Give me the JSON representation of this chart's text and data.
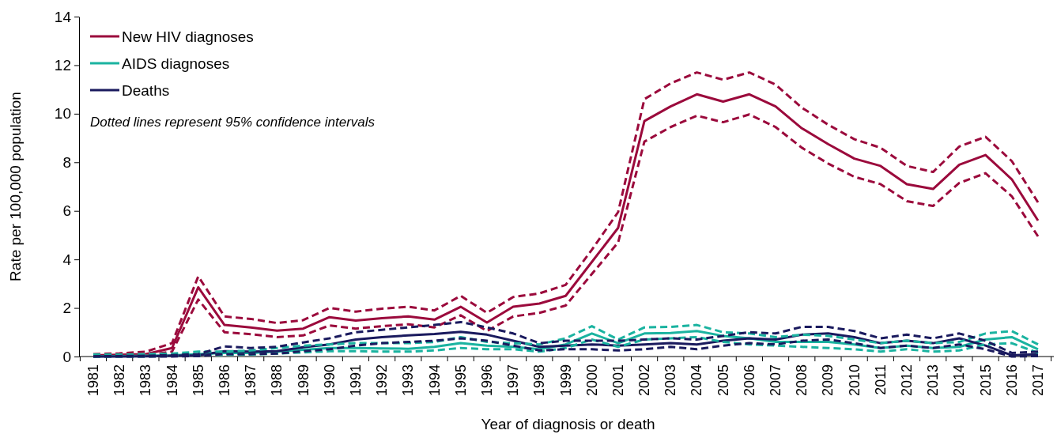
{
  "chart_data": {
    "type": "line",
    "xlabel": "Year of diagnosis or death",
    "ylabel": "Rate per 100,000 population",
    "annotations": [
      "Dotted lines represent 95% confidence intervals"
    ],
    "categories": [
      "1981",
      "1982",
      "1983",
      "1984",
      "1985",
      "1986",
      "1987",
      "1988",
      "1989",
      "1990",
      "1991",
      "1992",
      "1993",
      "1994",
      "1995",
      "1996",
      "1997",
      "1998",
      "1999",
      "2000",
      "2001",
      "2002",
      "2003",
      "2004",
      "2005",
      "2006",
      "2007",
      "2008",
      "2009",
      "2010",
      "2011",
      "2012",
      "2013",
      "2014",
      "2015",
      "2016",
      "2017"
    ],
    "ylim": [
      0,
      14
    ],
    "yticks": [
      0,
      2,
      4,
      6,
      8,
      10,
      12,
      14
    ],
    "grid": false,
    "legend": "top left",
    "marker": "none",
    "line_style": "solid",
    "series": [
      {
        "name": "New HIV diagnoses",
        "color": "#9b0a3c",
        "values": [
          0.05,
          0.07,
          0.1,
          0.35,
          2.85,
          1.3,
          1.2,
          1.07,
          1.15,
          1.62,
          1.48,
          1.58,
          1.65,
          1.52,
          2.05,
          1.4,
          2.05,
          2.18,
          2.5,
          3.9,
          5.3,
          9.7,
          10.3,
          10.8,
          10.5,
          10.8,
          10.3,
          9.4,
          8.75,
          8.15,
          7.85,
          7.1,
          6.9,
          7.9,
          8.3,
          7.3,
          5.6
        ]
      },
      {
        "name": "AIDS diagnoses",
        "color": "#1ab3a0",
        "values": [
          0.01,
          0.02,
          0.03,
          0.05,
          0.1,
          0.15,
          0.15,
          0.2,
          0.28,
          0.35,
          0.35,
          0.33,
          0.32,
          0.4,
          0.55,
          0.45,
          0.4,
          0.3,
          0.5,
          0.95,
          0.55,
          0.95,
          0.97,
          1.05,
          0.85,
          0.75,
          0.6,
          0.6,
          0.6,
          0.5,
          0.35,
          0.45,
          0.35,
          0.4,
          0.7,
          0.8,
          0.3
        ]
      },
      {
        "name": "Deaths",
        "color": "#1a1a5e",
        "values": [
          0,
          0,
          0.01,
          0.03,
          0.05,
          0.22,
          0.2,
          0.22,
          0.38,
          0.5,
          0.7,
          0.8,
          0.87,
          0.93,
          1.02,
          0.9,
          0.65,
          0.4,
          0.45,
          0.5,
          0.45,
          0.5,
          0.55,
          0.5,
          0.65,
          0.75,
          0.7,
          0.9,
          0.95,
          0.8,
          0.55,
          0.65,
          0.55,
          0.75,
          0.45,
          0.05,
          0.1
        ]
      },
      {
        "color": "#9b0a3c",
        "line_style": "dashed",
        "values": [
          0.1,
          0.13,
          0.2,
          0.55,
          3.3,
          1.65,
          1.55,
          1.38,
          1.5,
          2.0,
          1.85,
          1.97,
          2.05,
          1.9,
          2.5,
          1.8,
          2.45,
          2.6,
          2.95,
          4.4,
          5.95,
          10.6,
          11.25,
          11.7,
          11.4,
          11.7,
          11.2,
          10.25,
          9.55,
          8.95,
          8.6,
          7.85,
          7.6,
          8.65,
          9.05,
          8.05,
          6.35
        ]
      },
      {
        "color": "#9b0a3c",
        "line_style": "dashed",
        "values": [
          0.02,
          0.03,
          0.05,
          0.2,
          2.35,
          1.0,
          0.92,
          0.8,
          0.87,
          1.28,
          1.15,
          1.25,
          1.33,
          1.2,
          1.7,
          1.05,
          1.65,
          1.8,
          2.1,
          3.4,
          4.7,
          8.85,
          9.45,
          9.92,
          9.65,
          9.97,
          9.45,
          8.6,
          7.95,
          7.4,
          7.1,
          6.4,
          6.2,
          7.15,
          7.55,
          6.6,
          4.95
        ]
      },
      {
        "color": "#1ab3a0",
        "line_style": "dashed",
        "values": [
          0.08,
          0.08,
          0.1,
          0.12,
          0.2,
          0.2,
          0.25,
          0.35,
          0.45,
          0.5,
          0.55,
          0.55,
          0.55,
          0.6,
          0.8,
          0.6,
          0.55,
          0.5,
          0.75,
          1.25,
          0.7,
          1.2,
          1.22,
          1.3,
          1.0,
          0.95,
          0.8,
          0.9,
          0.85,
          0.7,
          0.55,
          0.65,
          0.55,
          0.6,
          0.95,
          1.05,
          0.5
        ]
      },
      {
        "color": "#1ab3a0",
        "line_style": "dashed",
        "values": [
          0,
          0,
          0,
          0.02,
          0.05,
          0.07,
          0.08,
          0.12,
          0.17,
          0.22,
          0.22,
          0.2,
          0.2,
          0.25,
          0.35,
          0.3,
          0.3,
          0.2,
          0.35,
          0.7,
          0.4,
          0.7,
          0.75,
          0.8,
          0.6,
          0.5,
          0.45,
          0.4,
          0.35,
          0.3,
          0.2,
          0.3,
          0.2,
          0.25,
          0.5,
          0.55,
          0.15
        ]
      },
      {
        "color": "#1a1a5e",
        "line_style": "dashed",
        "values": [
          0.01,
          0.02,
          0.03,
          0.06,
          0.1,
          0.42,
          0.35,
          0.4,
          0.58,
          0.75,
          1.0,
          1.1,
          1.2,
          1.3,
          1.42,
          1.2,
          0.95,
          0.55,
          0.65,
          0.65,
          0.65,
          0.7,
          0.75,
          0.7,
          0.85,
          1.0,
          0.95,
          1.22,
          1.22,
          1.05,
          0.75,
          0.9,
          0.75,
          0.95,
          0.65,
          0.15,
          0.2
        ]
      },
      {
        "color": "#1a1a5e",
        "line_style": "dashed",
        "values": [
          0,
          0,
          0,
          0,
          0.02,
          0.1,
          0.1,
          0.12,
          0.22,
          0.3,
          0.45,
          0.55,
          0.6,
          0.65,
          0.75,
          0.65,
          0.45,
          0.25,
          0.3,
          0.3,
          0.25,
          0.3,
          0.4,
          0.3,
          0.45,
          0.55,
          0.5,
          0.65,
          0.7,
          0.55,
          0.35,
          0.45,
          0.35,
          0.5,
          0.3,
          0,
          0.02
        ]
      }
    ]
  }
}
